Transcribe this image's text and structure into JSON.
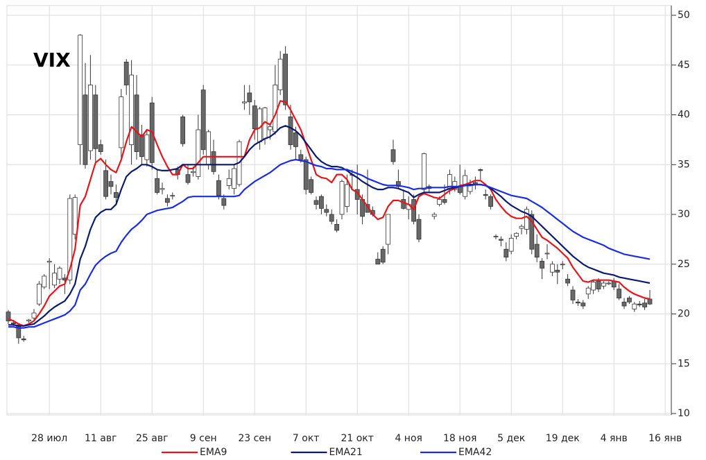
{
  "chart_data": {
    "type": "candlestick",
    "title": "VIX",
    "categories": [
      null,
      null,
      null,
      null,
      null,
      null,
      null,
      null,
      "28 июл",
      null,
      null,
      null,
      null,
      null,
      null,
      null,
      null,
      null,
      "11 авг",
      null,
      null,
      null,
      null,
      null,
      null,
      null,
      null,
      null,
      "25 авг",
      null,
      null,
      null,
      null,
      null,
      null,
      null,
      null,
      null,
      "9 сен",
      null,
      null,
      null,
      null,
      null,
      null,
      null,
      null,
      null,
      "23 сен",
      null,
      null,
      null,
      null,
      null,
      null,
      null,
      null,
      null,
      "7 окт",
      null,
      null,
      null,
      null,
      null,
      null,
      null,
      null,
      null,
      "21 окт",
      null,
      null,
      null,
      null,
      null,
      null,
      null,
      null,
      null,
      "4 ноя",
      null,
      null,
      null,
      null,
      null,
      null,
      null,
      null,
      null,
      "18 ноя",
      null,
      null,
      null,
      null,
      null,
      null,
      null,
      null,
      null,
      "5 дек",
      null,
      null,
      null,
      null,
      null,
      null,
      null,
      null,
      null,
      "19 дек",
      null,
      null,
      null,
      null,
      null,
      null,
      null,
      null,
      null,
      "4 янв",
      null,
      null,
      null,
      null,
      null,
      null,
      null,
      null,
      null,
      "16 янв"
    ],
    "open": [
      20.2,
      19.1,
      18.9,
      17.5,
      19.3,
      19.6,
      21.0,
      22.7,
      25.2,
      22.9,
      23.5,
      23.6,
      23.4,
      28.0,
      37.0,
      42.0,
      36.4,
      42.0,
      37.0,
      34.4,
      33.3,
      32.2,
      36.7,
      45.3,
      37.0,
      42.0,
      38.0,
      35.5,
      41.2,
      33.6,
      32.5,
      31.6,
      31.9,
      34.5,
      39.8,
      34.0,
      34.2,
      33.8,
      42.5,
      35.0,
      36.3,
      33.4,
      31.6,
      32.9,
      32.6,
      33.0,
      41.2,
      42.2,
      40.9,
      37.3,
      37.6,
      38.5,
      38.3,
      42.5,
      46.1,
      39.8,
      38.2,
      36.0,
      35.5,
      33.5,
      31.4,
      31.8,
      30.5,
      30.0,
      29.0,
      30.0,
      30.8,
      34.0,
      32.5,
      31.5,
      31.0,
      30.4,
      25.5,
      26.5,
      27.0,
      36.5,
      33.3,
      31.5,
      30.5,
      31.5,
      29.5,
      32.5,
      32.8,
      29.8,
      31.0,
      31.5,
      32.5,
      32.5,
      32.8,
      31.8,
      32.3,
      33.2,
      34.5,
      32.0,
      31.8,
      27.8,
      27.5,
      26.5,
      26.3,
      27.8,
      28.6,
      28.5,
      30.0,
      27.0,
      25.3,
      26.1,
      24.2,
      24.4,
      25.0,
      23.5,
      22.4,
      21.2,
      21.1,
      22.0,
      22.4,
      23.3,
      22.8,
      23.1,
      23.3,
      22.5,
      21.2,
      21.6,
      20.5,
      21.0,
      21.1,
      21.5,
      null,
      null,
      null
    ],
    "high": [
      20.4,
      19.4,
      19.0,
      17.8,
      19.5,
      20.5,
      23.3,
      24.0,
      25.6,
      25.0,
      24.8,
      24.0,
      32.0,
      32.0,
      48.1,
      45.2,
      46.0,
      43.0,
      37.5,
      35.5,
      34.0,
      33.0,
      42.6,
      45.6,
      45.5,
      44.0,
      39.0,
      38.5,
      41.8,
      34.5,
      33.2,
      32.0,
      32.2,
      34.8,
      40.0,
      35.0,
      34.8,
      40.0,
      43.0,
      38.5,
      37.5,
      34.0,
      32.0,
      34.5,
      35.0,
      37.5,
      43.0,
      43.0,
      41.5,
      40.8,
      40.8,
      39.0,
      45.0,
      46.4,
      46.9,
      41.0,
      38.8,
      36.5,
      35.8,
      33.8,
      31.8,
      32.0,
      31.0,
      30.5,
      29.5,
      33.5,
      34.0,
      34.5,
      35.0,
      32.0,
      34.5,
      30.8,
      26.2,
      26.8,
      30.0,
      37.5,
      34.5,
      32.5,
      31.8,
      32.0,
      30.0,
      36.2,
      33.0,
      30.2,
      31.8,
      33.0,
      34.5,
      33.8,
      35.0,
      34.5,
      33.5,
      33.8,
      34.6,
      32.5,
      32.0,
      28.0,
      27.8,
      27.2,
      28.0,
      28.2,
      29.0,
      30.8,
      30.4,
      28.0,
      25.6,
      27.0,
      25.3,
      25.0,
      25.3,
      24.0,
      22.8,
      21.5,
      21.4,
      22.8,
      23.4,
      23.6,
      23.3,
      23.3,
      23.6,
      23.0,
      21.6,
      21.8,
      21.2,
      21.3,
      21.5,
      22.4,
      null,
      null,
      null
    ],
    "low": [
      19.0,
      18.8,
      17.0,
      17.2,
      19.1,
      19.4,
      20.8,
      22.5,
      22.5,
      22.6,
      23.0,
      22.0,
      23.0,
      27.5,
      35.0,
      34.6,
      35.5,
      35.0,
      36.0,
      31.5,
      32.0,
      31.0,
      35.5,
      42.0,
      35.0,
      35.5,
      35.0,
      34.8,
      34.5,
      32.0,
      32.0,
      30.8,
      31.5,
      33.5,
      36.8,
      33.0,
      33.8,
      33.5,
      36.0,
      34.5,
      34.0,
      31.5,
      30.5,
      32.5,
      32.0,
      32.8,
      40.5,
      40.0,
      37.5,
      36.5,
      37.0,
      37.5,
      38.0,
      42.0,
      40.5,
      36.5,
      35.5,
      35.2,
      32.0,
      32.0,
      30.5,
      30.0,
      29.8,
      29.0,
      28.2,
      29.5,
      30.2,
      32.5,
      30.0,
      29.0,
      30.5,
      29.8,
      25.0,
      25.0,
      26.0,
      35.0,
      32.5,
      30.5,
      29.5,
      29.0,
      27.2,
      32.0,
      32.2,
      29.5,
      30.8,
      31.0,
      32.0,
      32.3,
      32.0,
      31.5,
      32.0,
      32.5,
      33.5,
      31.5,
      30.5,
      27.5,
      26.8,
      25.3,
      26.0,
      27.5,
      28.0,
      28.0,
      26.0,
      25.2,
      23.5,
      25.5,
      23.8,
      23.0,
      24.5,
      22.8,
      21.0,
      20.8,
      20.5,
      21.5,
      22.0,
      22.2,
      22.5,
      22.9,
      22.4,
      21.4,
      20.5,
      21.0,
      20.2,
      20.7,
      20.4,
      20.9,
      null,
      null,
      null
    ],
    "close": [
      19.3,
      19.0,
      17.6,
      17.4,
      19.4,
      20.1,
      23.0,
      23.8,
      25.3,
      24.1,
      24.6,
      23.4,
      31.6,
      31.7,
      48.0,
      35.0,
      43.0,
      36.6,
      36.3,
      31.8,
      32.8,
      31.7,
      41.8,
      43.0,
      44.0,
      36.3,
      35.8,
      38.0,
      35.2,
      32.2,
      32.6,
      31.2,
      31.9,
      34.0,
      37.1,
      33.2,
      34.3,
      38.5,
      36.5,
      38.3,
      34.3,
      31.9,
      30.9,
      33.6,
      34.6,
      37.3,
      41.3,
      41.3,
      38.6,
      40.6,
      40.7,
      38.8,
      43.0,
      45.6,
      41.0,
      37.0,
      36.8,
      35.5,
      32.5,
      32.2,
      31.0,
      30.6,
      30.2,
      29.3,
      28.4,
      33.3,
      33.0,
      34.0,
      31.5,
      29.8,
      30.2,
      30.0,
      25.0,
      25.2,
      30.0,
      35.3,
      32.8,
      30.6,
      31.0,
      29.3,
      27.5,
      36.1,
      32.6,
      30.0,
      31.5,
      31.2,
      34.0,
      33.3,
      32.2,
      33.9,
      32.9,
      33.0,
      34.4,
      31.9,
      30.8,
      27.8,
      27.4,
      25.7,
      27.6,
      28.1,
      28.8,
      30.5,
      26.5,
      25.7,
      24.6,
      26.1,
      25.0,
      24.2,
      25.0,
      23.1,
      21.4,
      21.1,
      20.8,
      22.6,
      23.2,
      22.5,
      23.1,
      23.1,
      22.7,
      21.6,
      20.8,
      21.2,
      21.0,
      20.9,
      20.7,
      21.0,
      null,
      null,
      null
    ],
    "up_color": "#ffffff",
    "down_color": "#686868",
    "series": [
      {
        "name": "EMA9",
        "color": "#e8141b",
        "values": [
          19.5,
          19.3,
          19.0,
          18.8,
          19.0,
          19.3,
          20.0,
          20.8,
          21.8,
          22.3,
          22.8,
          23.0,
          24.5,
          26.5,
          30.9,
          31.8,
          33.5,
          35.2,
          35.6,
          35.0,
          34.5,
          34.2,
          35.5,
          37.3,
          38.8,
          38.3,
          37.8,
          38.5,
          38.3,
          37.0,
          35.8,
          34.8,
          34.0,
          34.0,
          35.0,
          34.6,
          34.6,
          35.2,
          35.8,
          35.8,
          35.8,
          35.8,
          35.8,
          35.8,
          35.8,
          35.8,
          35.8,
          37.5,
          38.5,
          38.7,
          39.3,
          39.0,
          40.0,
          41.4,
          41.3,
          40.5,
          39.5,
          38.5,
          37.0,
          35.5,
          34.0,
          33.7,
          33.6,
          33.2,
          34.0,
          34.0,
          33.5,
          32.5,
          32.2,
          31.5,
          30.8,
          30.0,
          29.5,
          29.7,
          30.8,
          31.4,
          31.4,
          31.2,
          31.0,
          30.5,
          31.8,
          32.1,
          31.9,
          31.7,
          31.6,
          32.0,
          32.4,
          32.6,
          32.9,
          33.0,
          33.2,
          33.4,
          33.4,
          33.0,
          32.5,
          31.5,
          30.8,
          30.2,
          29.8,
          29.6,
          29.6,
          29.8,
          29.3,
          28.5,
          27.7,
          27.4,
          27.0,
          26.6,
          26.1,
          25.6,
          24.7,
          24.0,
          23.3,
          23.2,
          23.4,
          23.4,
          23.4,
          23.4,
          23.3,
          23.2,
          22.7,
          22.3,
          22.0,
          21.8,
          21.6,
          21.5,
          null,
          null,
          null
        ]
      },
      {
        "name": "EMA21",
        "color": "#0b1a6e",
        "values": [
          18.9,
          18.9,
          18.8,
          18.8,
          18.9,
          19.0,
          19.4,
          19.8,
          20.3,
          20.7,
          21.0,
          21.3,
          22.0,
          23.0,
          25.5,
          26.8,
          28.5,
          29.7,
          30.2,
          30.5,
          30.5,
          31.0,
          32.5,
          33.8,
          34.3,
          34.6,
          35.0,
          35.0,
          34.8,
          34.5,
          34.4,
          34.4,
          34.5,
          34.6,
          35.0,
          35.0,
          35.0,
          35.0,
          35.0,
          35.0,
          35.0,
          35.0,
          35.0,
          35.0,
          35.0,
          35.2,
          35.8,
          36.5,
          37.0,
          37.3,
          37.6,
          37.8,
          38.2,
          38.7,
          38.9,
          38.7,
          38.4,
          37.9,
          37.2,
          36.5,
          35.8,
          35.3,
          35.0,
          34.8,
          34.8,
          34.7,
          34.4,
          34.0,
          33.7,
          33.3,
          33.0,
          32.7,
          32.5,
          32.5,
          32.7,
          32.7,
          32.6,
          32.4,
          32.2,
          31.7,
          32.0,
          32.2,
          32.2,
          32.2,
          32.2,
          32.4,
          32.6,
          32.7,
          32.8,
          32.9,
          33.0,
          33.0,
          33.0,
          32.9,
          32.6,
          32.2,
          31.8,
          31.3,
          30.9,
          30.6,
          30.3,
          30.1,
          29.8,
          29.3,
          28.8,
          28.3,
          27.8,
          27.3,
          26.8,
          26.3,
          25.8,
          25.4,
          25.0,
          24.7,
          24.5,
          24.3,
          24.1,
          24.0,
          23.9,
          23.7,
          23.6,
          23.5,
          23.4,
          23.3,
          23.2,
          23.1,
          null,
          null,
          null
        ]
      },
      {
        "name": "EMA42",
        "color": "#1a2ce0",
        "values": [
          18.7,
          18.7,
          18.6,
          18.6,
          18.7,
          18.7,
          18.9,
          19.1,
          19.3,
          19.5,
          19.7,
          19.9,
          20.3,
          20.9,
          22.4,
          23.0,
          24.0,
          24.9,
          25.4,
          25.8,
          26.1,
          26.3,
          27.2,
          27.9,
          28.5,
          28.9,
          29.4,
          30.0,
          30.2,
          30.4,
          30.5,
          30.6,
          30.7,
          31.0,
          31.3,
          31.7,
          31.8,
          31.8,
          31.8,
          31.8,
          31.8,
          31.8,
          31.8,
          31.8,
          31.8,
          31.9,
          32.5,
          32.9,
          33.3,
          33.6,
          33.9,
          34.2,
          34.6,
          35.0,
          35.2,
          35.4,
          35.5,
          35.4,
          35.3,
          35.1,
          34.9,
          34.8,
          34.6,
          34.6,
          34.5,
          34.5,
          34.5,
          34.3,
          34.1,
          33.9,
          33.6,
          33.4,
          33.2,
          33.0,
          32.9,
          32.9,
          32.9,
          32.8,
          32.7,
          32.5,
          32.6,
          32.6,
          32.7,
          32.7,
          32.7,
          32.7,
          32.8,
          32.8,
          32.8,
          32.9,
          32.9,
          33.0,
          33.0,
          32.9,
          32.7,
          32.5,
          32.3,
          32.1,
          31.9,
          31.8,
          31.7,
          31.6,
          31.3,
          31.0,
          30.7,
          30.3,
          29.9,
          29.5,
          29.1,
          28.7,
          28.3,
          28.0,
          27.7,
          27.5,
          27.3,
          27.1,
          26.9,
          26.6,
          26.4,
          26.2,
          26.0,
          25.9,
          25.8,
          25.7,
          25.6,
          25.5,
          null,
          null,
          null
        ]
      }
    ],
    "ylim": [
      10,
      50
    ],
    "yticks": [
      10,
      15,
      20,
      25,
      30,
      35,
      40,
      45,
      50
    ],
    "grid": true
  }
}
